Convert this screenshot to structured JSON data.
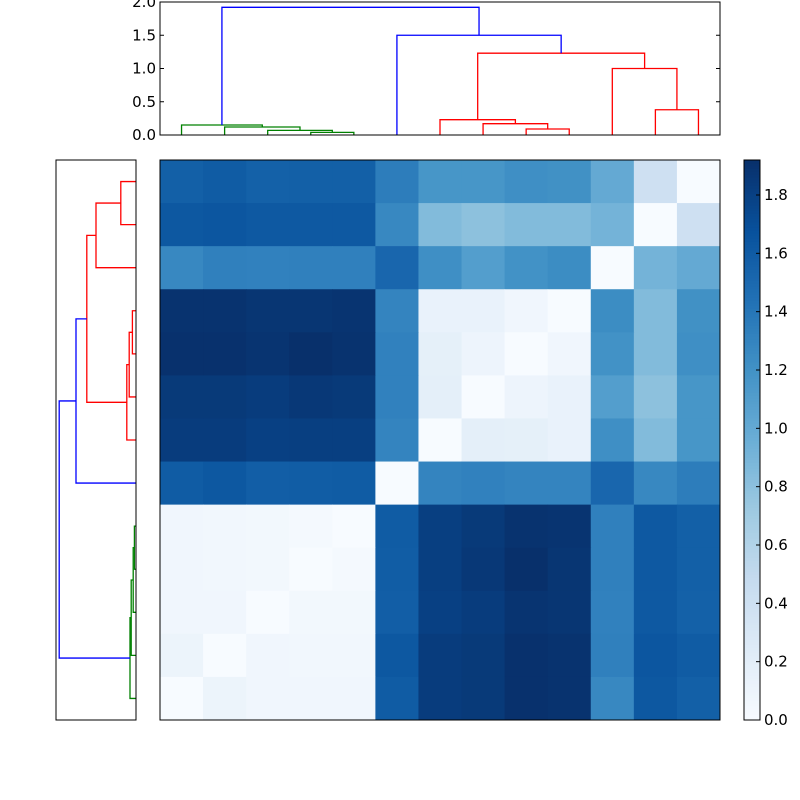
{
  "chart_data": [
    {
      "type": "heatmap",
      "colormap": "Blues",
      "colorbar": {
        "range": [
          0,
          1.92
        ],
        "ticks": [
          0.0,
          0.2,
          0.4,
          0.6,
          0.8,
          1.0,
          1.2,
          1.4,
          1.6,
          1.8
        ],
        "tick_labels": [
          "0.0",
          "0.2",
          "0.4",
          "0.6",
          "0.8",
          "1.0",
          "1.2",
          "1.4",
          "1.6",
          "1.8"
        ]
      },
      "column_leaf_order": [
        0,
        1,
        2,
        3,
        4,
        5,
        6,
        7,
        8,
        9,
        10,
        11,
        12
      ],
      "row_leaf_order": [
        12,
        11,
        10,
        9,
        8,
        7,
        6,
        5,
        4,
        3,
        2,
        1,
        0
      ],
      "values": [
        [
          1.57,
          1.6,
          1.56,
          1.57,
          1.57,
          1.35,
          1.17,
          1.17,
          1.22,
          1.21,
          1.0,
          0.4,
          0.0
        ],
        [
          1.63,
          1.64,
          1.62,
          1.62,
          1.62,
          1.27,
          0.85,
          0.8,
          0.85,
          0.85,
          0.92,
          0.0,
          0.4
        ],
        [
          1.27,
          1.33,
          1.32,
          1.33,
          1.33,
          1.52,
          1.22,
          1.1,
          1.2,
          1.24,
          0.0,
          0.92,
          1.0
        ],
        [
          1.9,
          1.9,
          1.88,
          1.88,
          1.89,
          1.3,
          0.13,
          0.13,
          0.07,
          0.0,
          1.24,
          0.85,
          1.21
        ],
        [
          1.91,
          1.91,
          1.89,
          1.92,
          1.9,
          1.32,
          0.17,
          0.1,
          0.0,
          0.07,
          1.2,
          0.85,
          1.22
        ],
        [
          1.85,
          1.85,
          1.83,
          1.86,
          1.85,
          1.32,
          0.18,
          0.0,
          0.1,
          0.13,
          1.1,
          0.8,
          1.17
        ],
        [
          1.83,
          1.83,
          1.8,
          1.81,
          1.81,
          1.3,
          0.0,
          0.18,
          0.17,
          0.13,
          1.22,
          0.85,
          1.17
        ],
        [
          1.6,
          1.63,
          1.58,
          1.59,
          1.6,
          0.0,
          1.3,
          1.32,
          1.3,
          1.3,
          1.52,
          1.27,
          1.35
        ],
        [
          0.07,
          0.06,
          0.05,
          0.03,
          0.0,
          1.6,
          1.81,
          1.85,
          1.9,
          1.89,
          1.33,
          1.62,
          1.57
        ],
        [
          0.07,
          0.06,
          0.05,
          0.0,
          0.03,
          1.59,
          1.81,
          1.86,
          1.92,
          1.88,
          1.33,
          1.62,
          1.57
        ],
        [
          0.07,
          0.07,
          0.0,
          0.05,
          0.05,
          1.58,
          1.8,
          1.83,
          1.89,
          1.88,
          1.32,
          1.62,
          1.56
        ],
        [
          0.11,
          0.0,
          0.07,
          0.06,
          0.06,
          1.63,
          1.83,
          1.85,
          1.91,
          1.9,
          1.33,
          1.64,
          1.6
        ],
        [
          0.0,
          0.11,
          0.07,
          0.07,
          0.07,
          1.6,
          1.83,
          1.85,
          1.91,
          1.9,
          1.27,
          1.63,
          1.57
        ]
      ]
    },
    {
      "type": "dendrogram",
      "orientation": "top",
      "ylim": [
        0,
        2.0
      ],
      "ticks": [
        0.0,
        0.5,
        1.0,
        1.5,
        2.0
      ],
      "tick_labels": [
        "0.0",
        "0.5",
        "1.0",
        "1.5",
        "2.0"
      ],
      "leaves": 13,
      "merges": [
        [
          3,
          4,
          0.04,
          "green"
        ],
        [
          2,
          13,
          0.07,
          "green"
        ],
        [
          1,
          14,
          0.12,
          "green"
        ],
        [
          0,
          15,
          0.15,
          "green"
        ],
        [
          8,
          9,
          0.09,
          "red"
        ],
        [
          7,
          17,
          0.17,
          "red"
        ],
        [
          6,
          18,
          0.23,
          "red"
        ],
        [
          11,
          12,
          0.38,
          "red"
        ],
        [
          10,
          20,
          1.0,
          "red"
        ],
        [
          19,
          21,
          1.23,
          "red"
        ],
        [
          5,
          22,
          1.5,
          "blue"
        ],
        [
          16,
          23,
          1.92,
          "blue"
        ]
      ]
    },
    {
      "type": "dendrogram",
      "orientation": "left",
      "xlim": [
        2.0,
        0
      ],
      "leaves": 13,
      "note_order": "same linkage as top dendrogram, leaves displayed bottom-to-top",
      "merges": "same as top"
    }
  ],
  "colors": {
    "green": "#008000",
    "red": "#ff0000",
    "blue": "#0000ff"
  }
}
